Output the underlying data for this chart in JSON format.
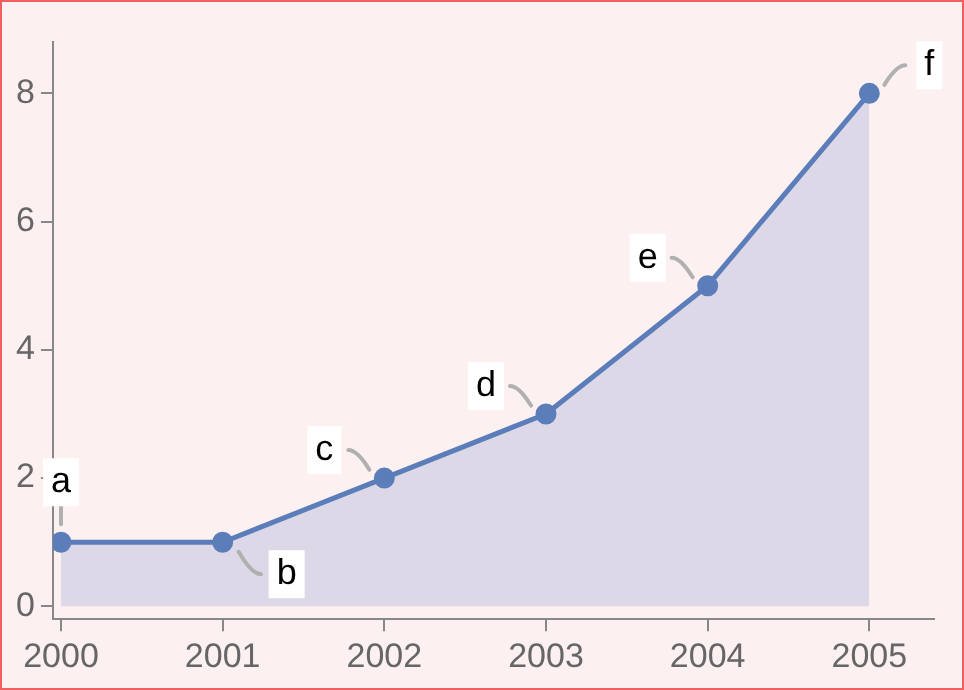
{
  "chart_data": {
    "type": "area",
    "x": [
      2000,
      2001,
      2002,
      2003,
      2004,
      2005
    ],
    "series": [
      {
        "color": "#5b7db9",
        "values": [
          1,
          1,
          2,
          3,
          5,
          8
        ]
      }
    ],
    "xlim": [
      1999.95,
      2005.4
    ],
    "xticks": [
      2000,
      2001,
      2002,
      2003,
      2004,
      2005
    ],
    "ylim": [
      -0.2,
      8.8
    ],
    "yticks": [
      0,
      2,
      4,
      6,
      8
    ],
    "marker": "circle",
    "grid": false,
    "legend": false,
    "annotations": [
      {
        "text": "a",
        "x": 2000,
        "y": 1
      },
      {
        "text": "b",
        "x": 2001,
        "y": 1
      },
      {
        "text": "c",
        "x": 2002,
        "y": 2
      },
      {
        "text": "d",
        "x": 2003,
        "y": 3
      },
      {
        "text": "e",
        "x": 2004,
        "y": 5
      },
      {
        "text": "f",
        "x": 2005,
        "y": 8
      }
    ]
  }
}
